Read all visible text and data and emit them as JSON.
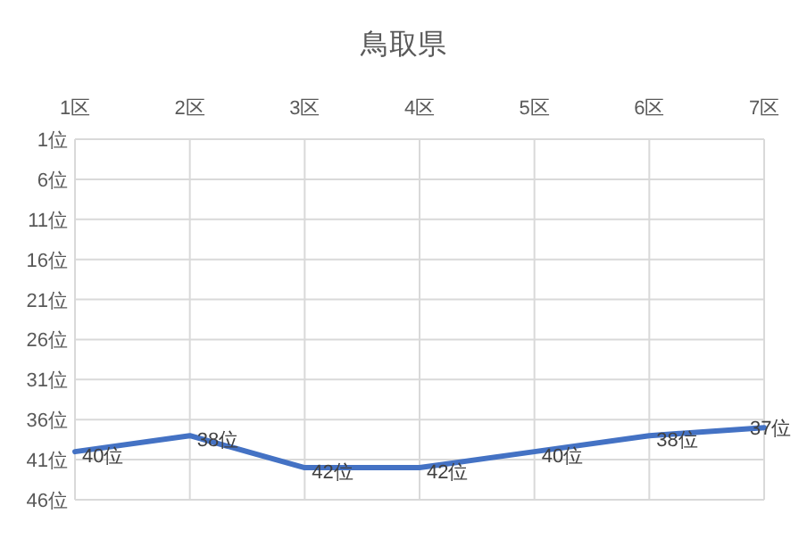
{
  "chart_data": {
    "type": "line",
    "title": "鳥取県",
    "categories": [
      "1区",
      "2区",
      "3区",
      "4区",
      "5区",
      "6区",
      "7区"
    ],
    "values": [
      40,
      38,
      42,
      42,
      40,
      38,
      37
    ],
    "value_labels": [
      "40位",
      "38位",
      "42位",
      "42位",
      "40位",
      "38位",
      "37位"
    ],
    "color": "#4472c4",
    "ylim": [
      46,
      1
    ],
    "yticks": [
      {
        "value": 1,
        "label": "1位"
      },
      {
        "value": 6,
        "label": "6位"
      },
      {
        "value": 11,
        "label": "11位"
      },
      {
        "value": 16,
        "label": "16位"
      },
      {
        "value": 21,
        "label": "21位"
      },
      {
        "value": 26,
        "label": "26位"
      },
      {
        "value": 31,
        "label": "31位"
      },
      {
        "value": 36,
        "label": "36位"
      },
      {
        "value": 41,
        "label": "41位"
      },
      {
        "value": 46,
        "label": "46位"
      }
    ],
    "grid": true
  }
}
